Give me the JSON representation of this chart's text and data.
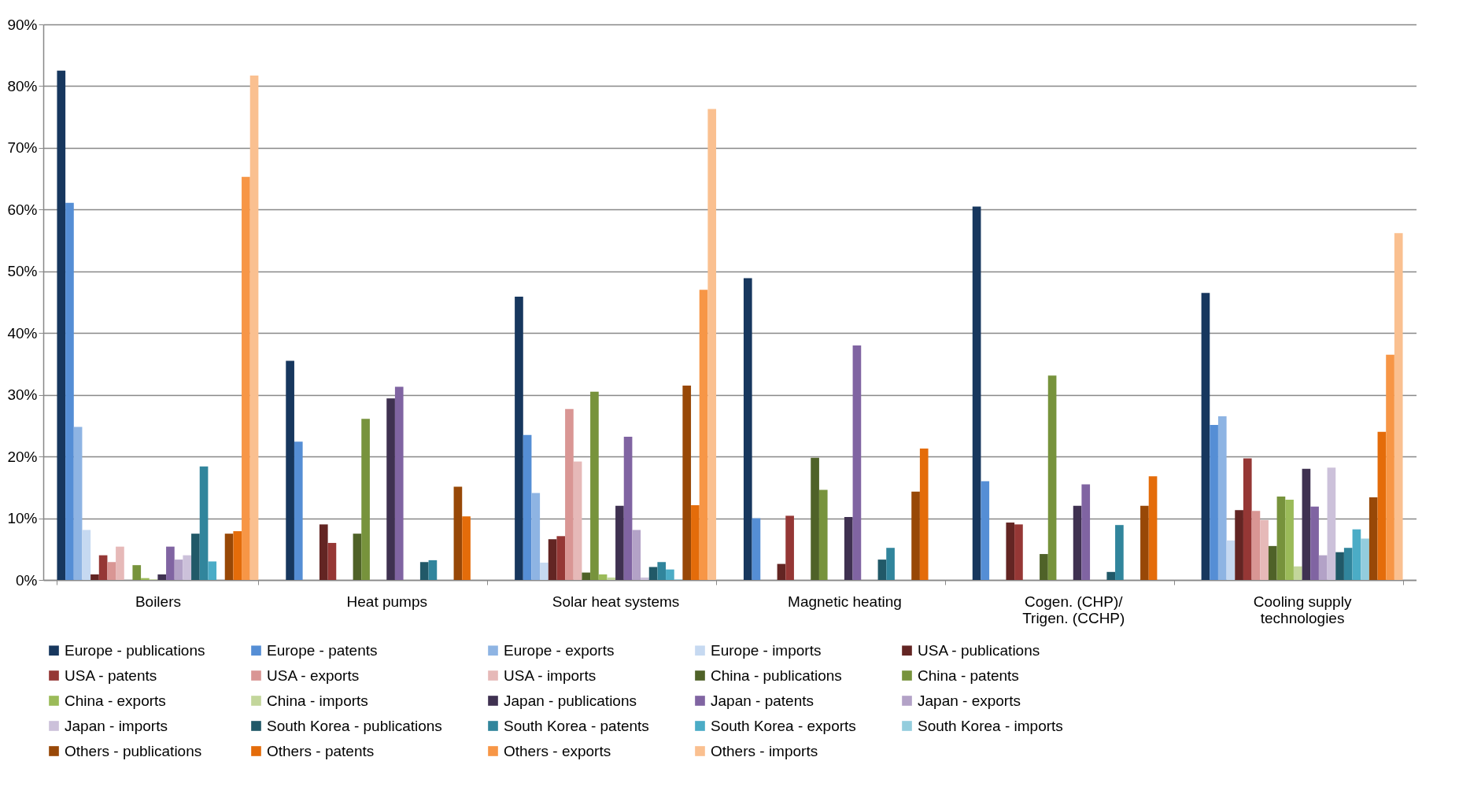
{
  "chart_data": {
    "type": "bar",
    "categories": [
      "Boilers",
      "Heat pumps",
      "Solar heat systems",
      "Magnetic heating",
      "Cogen. (CHP)/ Trigen. (CCHP)",
      "Cooling supply technologies"
    ],
    "series": [
      {
        "name": "Europe - publications",
        "color": "#17375e",
        "values": [
          82.5,
          35.5,
          45.9,
          48.9,
          60.5,
          46.5
        ]
      },
      {
        "name": "Europe - patents",
        "color": "#558ed5",
        "values": [
          61.1,
          22.4,
          23.5,
          10.0,
          16.0,
          25.1
        ]
      },
      {
        "name": "Europe - exports",
        "color": "#8eb4e3",
        "values": [
          24.8,
          0,
          14.1,
          0,
          0,
          26.5
        ]
      },
      {
        "name": "Europe - imports",
        "color": "#c6d9f1",
        "values": [
          8.1,
          0,
          2.8,
          0,
          0,
          6.4
        ]
      },
      {
        "name": "USA - publications",
        "color": "#632523",
        "values": [
          0.9,
          9.0,
          6.6,
          2.6,
          9.3,
          11.3
        ]
      },
      {
        "name": "USA - patents",
        "color": "#953735",
        "values": [
          4.0,
          6.0,
          7.1,
          10.4,
          9.0,
          19.7
        ]
      },
      {
        "name": "USA - exports",
        "color": "#d99694",
        "values": [
          2.9,
          0,
          27.7,
          0,
          0,
          11.2
        ]
      },
      {
        "name": "USA - imports",
        "color": "#e6b9b8",
        "values": [
          5.4,
          0,
          19.2,
          0,
          0,
          9.7
        ]
      },
      {
        "name": "China - publications",
        "color": "#4f6228",
        "values": [
          0,
          7.5,
          1.2,
          19.8,
          4.2,
          5.5
        ]
      },
      {
        "name": "China - patents",
        "color": "#77933c",
        "values": [
          2.4,
          26.1,
          30.5,
          14.6,
          33.1,
          13.5
        ]
      },
      {
        "name": "China - exports",
        "color": "#9bbb59",
        "values": [
          0.3,
          0,
          0.9,
          0,
          0,
          13.0
        ]
      },
      {
        "name": "China - imports",
        "color": "#c3d69b",
        "values": [
          0.1,
          0,
          0.4,
          0,
          0,
          2.2
        ]
      },
      {
        "name": "Japan - publications",
        "color": "#3f3151",
        "values": [
          0.9,
          29.4,
          12.0,
          10.2,
          12.0,
          18.0
        ]
      },
      {
        "name": "Japan - patents",
        "color": "#8064a2",
        "values": [
          5.4,
          31.3,
          23.2,
          38.0,
          15.5,
          11.9
        ]
      },
      {
        "name": "Japan - exports",
        "color": "#b3a2c7",
        "values": [
          3.3,
          0,
          8.1,
          0,
          0,
          4.0
        ]
      },
      {
        "name": "Japan - imports",
        "color": "#ccc1da",
        "values": [
          4.0,
          0,
          0.4,
          0,
          0,
          18.2
        ]
      },
      {
        "name": "South Korea - publications",
        "color": "#215968",
        "values": [
          7.5,
          2.9,
          2.1,
          3.3,
          1.3,
          4.5
        ]
      },
      {
        "name": "South Korea - patents",
        "color": "#31859c",
        "values": [
          18.4,
          3.2,
          2.9,
          5.2,
          8.9,
          5.2
        ]
      },
      {
        "name": "South Korea - exports",
        "color": "#4bacc6",
        "values": [
          3.0,
          0,
          1.7,
          0,
          0,
          8.2
        ]
      },
      {
        "name": "South Korea - imports",
        "color": "#93cddd",
        "values": [
          0,
          0,
          0.1,
          0,
          0,
          6.7
        ]
      },
      {
        "name": "Others - publications",
        "color": "#984807",
        "values": [
          7.5,
          15.1,
          31.5,
          14.3,
          12.0,
          13.4
        ]
      },
      {
        "name": "Others - patents",
        "color": "#e46c0a",
        "values": [
          7.9,
          10.3,
          12.1,
          21.3,
          16.8,
          24.0
        ]
      },
      {
        "name": "Others - exports",
        "color": "#f79646",
        "values": [
          65.3,
          0,
          47.0,
          0,
          0,
          36.5
        ]
      },
      {
        "name": "Others - imports",
        "color": "#fac090",
        "values": [
          81.7,
          0,
          76.3,
          0,
          0,
          56.2
        ]
      }
    ],
    "ylim": [
      0,
      90
    ],
    "yticks": [
      {
        "value": 0,
        "label": "0%"
      },
      {
        "value": 10,
        "label": "10%"
      },
      {
        "value": 20,
        "label": "20%"
      },
      {
        "value": 30,
        "label": "30%"
      },
      {
        "value": 40,
        "label": "40%"
      },
      {
        "value": 50,
        "label": "50%"
      },
      {
        "value": 60,
        "label": "60%"
      },
      {
        "value": 70,
        "label": "70%"
      },
      {
        "value": 80,
        "label": "80%"
      },
      {
        "value": 90,
        "label": "90%"
      }
    ],
    "grid": "y",
    "legend": "bottom"
  }
}
